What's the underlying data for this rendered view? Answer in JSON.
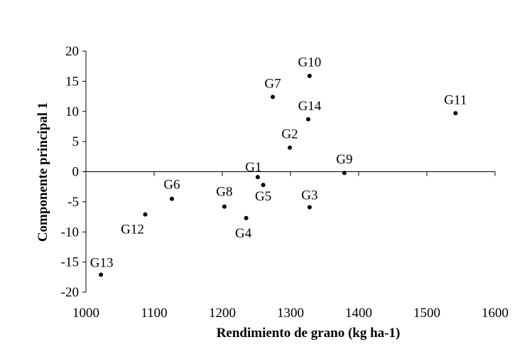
{
  "chart_data": {
    "type": "scatter",
    "xlabel": "Rendimiento de grano (kg ha-1)",
    "ylabel": "Componente principal 1",
    "xlim": [
      1000,
      1600
    ],
    "ylim": [
      -20,
      20
    ],
    "xticks": [
      1000,
      1100,
      1200,
      1300,
      1400,
      1500,
      1600
    ],
    "yticks": [
      20,
      15,
      10,
      5,
      0,
      -5,
      -10,
      -15,
      -20
    ],
    "grid": false,
    "marker_color": "#000000",
    "points": [
      {
        "label": "G1",
        "x": 1252,
        "y": -0.9
      },
      {
        "label": "G2",
        "x": 1299,
        "y": 4.0
      },
      {
        "label": "G3",
        "x": 1328,
        "y": -5.9
      },
      {
        "label": "G4",
        "x": 1235,
        "y": -7.7
      },
      {
        "label": "G5",
        "x": 1260,
        "y": -2.2
      },
      {
        "label": "G6",
        "x": 1126,
        "y": -4.5
      },
      {
        "label": "G7",
        "x": 1274,
        "y": 12.4
      },
      {
        "label": "G8",
        "x": 1203,
        "y": -5.8
      },
      {
        "label": "G9",
        "x": 1379,
        "y": -0.2
      },
      {
        "label": "G10",
        "x": 1328,
        "y": 15.9
      },
      {
        "label": "G11",
        "x": 1542,
        "y": 9.7
      },
      {
        "label": "G12",
        "x": 1087,
        "y": -7.1
      },
      {
        "label": "G13",
        "x": 1022,
        "y": -17.1
      },
      {
        "label": "G14",
        "x": 1326,
        "y": 8.7
      }
    ]
  }
}
